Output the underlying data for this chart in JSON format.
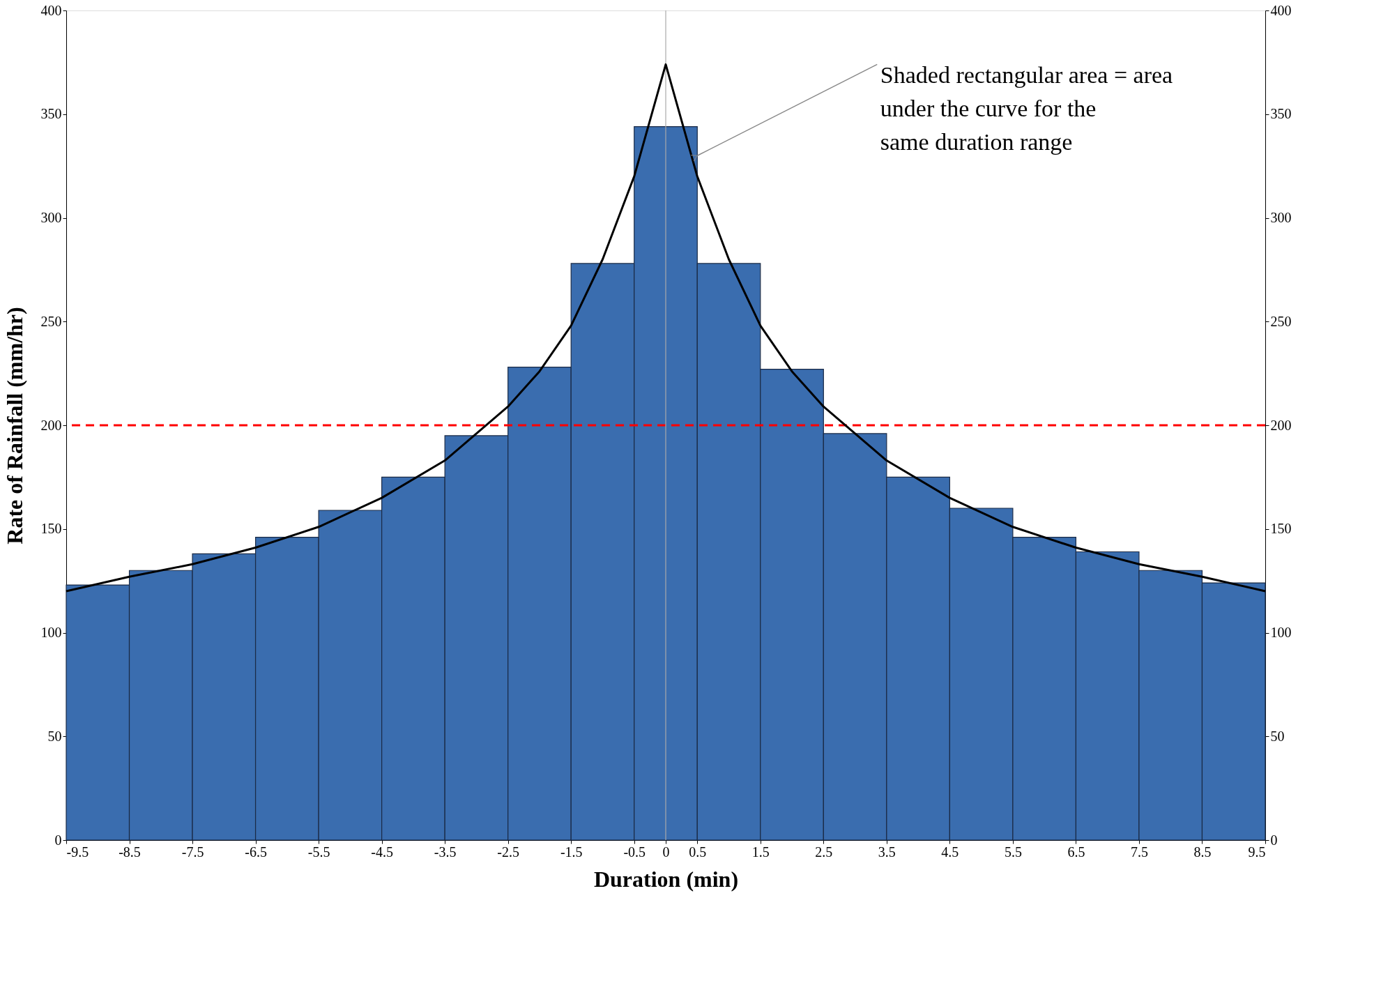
{
  "chart_data": {
    "type": "histogram",
    "xlabel": "Duration (min)",
    "ylabel": "Rate  of  Rainfall (mm/hr)",
    "bins": [
      -9.5,
      -8.5,
      -7.5,
      -6.5,
      -5.5,
      -4.5,
      -3.5,
      -2.5,
      -1.5,
      -0.5,
      0.5,
      1.5,
      2.5,
      3.5,
      4.5,
      5.5,
      6.5,
      7.5,
      8.5,
      9.5
    ],
    "values": [
      123,
      130,
      138,
      146,
      159,
      175,
      195,
      228,
      278,
      344,
      278,
      227,
      196,
      175,
      160,
      146,
      139,
      130,
      124
    ],
    "color": "#3a6daf",
    "series": [
      {
        "type": "line",
        "color": "#000000",
        "x": [
          -9.5,
          -8.5,
          -7.5,
          -6.5,
          -5.5,
          -4.5,
          -3.5,
          -2.5,
          -2,
          -1.5,
          -1,
          -0.5,
          0,
          0.5,
          1,
          1.5,
          2,
          2.5,
          3.5,
          4.5,
          5.5,
          6.5,
          7.5,
          8.5,
          9.5
        ],
        "values": [
          120,
          127,
          133,
          141,
          151,
          165,
          183,
          209,
          226,
          248,
          280,
          320,
          374,
          320,
          280,
          248,
          226,
          209,
          183,
          165,
          151,
          141,
          133,
          127,
          120
        ]
      }
    ],
    "xlim": [
      -9.5,
      9.5
    ],
    "xticks": [
      -9.5,
      -8.5,
      -7.5,
      -6.5,
      -5.5,
      -4.5,
      -3.5,
      -2.5,
      -1.5,
      -0.5,
      0,
      0.5,
      1.5,
      2.5,
      3.5,
      4.5,
      5.5,
      6.5,
      7.5,
      8.5,
      9.5
    ],
    "ylim": [
      0,
      400
    ],
    "yticks": [
      0,
      50,
      100,
      150,
      200,
      250,
      300,
      350,
      400
    ],
    "y2lim": [
      0,
      400
    ],
    "y2ticks": [
      0,
      50,
      100,
      150,
      200,
      250,
      300,
      350,
      400
    ],
    "ref_lines": [
      {
        "axis": "y",
        "value": 200,
        "color": "#ff0000",
        "line_style": "dashed"
      },
      {
        "axis": "x",
        "value": 0,
        "color": "#aaaaaa",
        "line_style": "solid"
      }
    ],
    "annotations": [
      {
        "text": "Shaded rectangular area = area\nunder the curve for the\nsame duration range",
        "x": 0.5,
        "y": 330
      }
    ],
    "grid": false
  }
}
